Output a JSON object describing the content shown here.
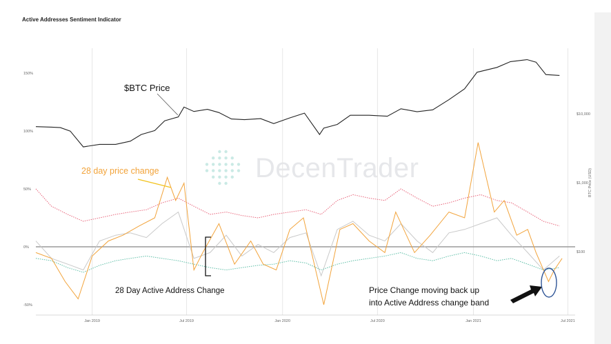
{
  "chart_data": {
    "type": "line",
    "title": "Active Addresses Sentiment Indicator",
    "x_range": [
      "2018-09-15",
      "2021-07-15"
    ],
    "x_ticks": [
      "Jan 2019",
      "Jul 2019",
      "Jan 2020",
      "Jul 2020",
      "Jan 2021",
      "Jul 2021"
    ],
    "left_ticks": [
      "150%",
      "100%",
      "50%",
      "0%",
      "-50%"
    ],
    "right_ticks": [
      "$10,000",
      "$1,000",
      "$100"
    ],
    "ylabel_right": "BTC Price (USD)",
    "grid": true,
    "series": [
      {
        "key": "btc_price",
        "color": "#222222",
        "x": [
          "2018-09-15",
          "2018-10-15",
          "2018-11-01",
          "2018-11-20",
          "2018-12-15",
          "2019-01-15",
          "2019-02-15",
          "2019-03-15",
          "2019-04-05",
          "2019-05-01",
          "2019-05-20",
          "2019-06-15",
          "2019-06-26",
          "2019-07-15",
          "2019-08-10",
          "2019-09-01",
          "2019-09-25",
          "2019-10-20",
          "2019-11-20",
          "2019-12-15",
          "2020-01-15",
          "2020-02-12",
          "2020-03-12",
          "2020-03-20",
          "2020-04-15",
          "2020-05-10",
          "2020-06-15",
          "2020-07-20",
          "2020-08-15",
          "2020-09-15",
          "2020-10-15",
          "2020-11-15",
          "2020-12-15",
          "2021-01-08",
          "2021-02-15",
          "2021-03-13",
          "2021-04-14",
          "2021-05-01",
          "2021-05-20",
          "2021-06-15"
        ],
        "values": [
          6500,
          6400,
          6300,
          5600,
          3300,
          3600,
          3600,
          4000,
          5000,
          5700,
          7900,
          9000,
          12500,
          10800,
          11600,
          10400,
          8400,
          8200,
          8500,
          7200,
          8700,
          10200,
          5000,
          6200,
          7000,
          9500,
          9500,
          9200,
          11800,
          10700,
          11400,
          16000,
          23000,
          40000,
          47000,
          57000,
          61000,
          56000,
          37000,
          36000
        ]
      },
      {
        "key": "price_change_28d",
        "color": "#f2a33a",
        "x": [
          "2018-09-15",
          "2018-10-15",
          "2018-11-10",
          "2018-12-05",
          "2019-01-01",
          "2019-02-01",
          "2019-03-01",
          "2019-04-01",
          "2019-05-01",
          "2019-05-25",
          "2019-06-10",
          "2019-06-26",
          "2019-07-15",
          "2019-08-01",
          "2019-09-01",
          "2019-10-01",
          "2019-11-01",
          "2019-11-25",
          "2019-12-20",
          "2020-01-15",
          "2020-02-10",
          "2020-03-20",
          "2020-04-20",
          "2020-05-15",
          "2020-06-15",
          "2020-07-15",
          "2020-08-05",
          "2020-09-10",
          "2020-10-10",
          "2020-11-15",
          "2020-12-15",
          "2021-01-10",
          "2021-02-10",
          "2021-03-01",
          "2021-03-25",
          "2021-04-15",
          "2021-05-01",
          "2021-05-25",
          "2021-06-05",
          "2021-06-20"
        ],
        "values": [
          -5,
          -10,
          -30,
          -45,
          -8,
          5,
          10,
          18,
          25,
          60,
          40,
          55,
          -20,
          -5,
          20,
          -15,
          5,
          -15,
          -20,
          15,
          25,
          -50,
          15,
          20,
          5,
          -5,
          30,
          -5,
          10,
          30,
          25,
          90,
          30,
          40,
          10,
          15,
          -5,
          -30,
          -20,
          -10
        ]
      },
      {
        "key": "active_address_upper",
        "color": "#e8647a",
        "x": [
          "2018-09-15",
          "2018-10-15",
          "2018-11-15",
          "2018-12-15",
          "2019-01-15",
          "2019-02-15",
          "2019-03-15",
          "2019-04-15",
          "2019-05-15",
          "2019-06-15",
          "2019-07-15",
          "2019-08-15",
          "2019-09-15",
          "2019-10-15",
          "2019-11-15",
          "2019-12-15",
          "2020-01-15",
          "2020-02-15",
          "2020-03-15",
          "2020-04-15",
          "2020-05-15",
          "2020-06-15",
          "2020-07-15",
          "2020-08-15",
          "2020-09-15",
          "2020-10-15",
          "2020-11-15",
          "2020-12-15",
          "2021-01-15",
          "2021-02-15",
          "2021-03-15",
          "2021-04-15",
          "2021-05-15",
          "2021-06-15"
        ],
        "values": [
          50,
          35,
          28,
          22,
          25,
          28,
          30,
          32,
          38,
          42,
          35,
          28,
          30,
          27,
          25,
          28,
          30,
          32,
          28,
          40,
          45,
          42,
          40,
          50,
          42,
          35,
          38,
          42,
          45,
          40,
          38,
          30,
          22,
          18
        ]
      },
      {
        "key": "active_address_lower",
        "color": "#5fbfa8",
        "x": [
          "2018-09-15",
          "2018-10-15",
          "2018-11-15",
          "2018-12-15",
          "2019-01-15",
          "2019-02-15",
          "2019-03-15",
          "2019-04-15",
          "2019-05-15",
          "2019-06-15",
          "2019-07-15",
          "2019-08-15",
          "2019-09-15",
          "2019-10-15",
          "2019-11-15",
          "2019-12-15",
          "2020-01-15",
          "2020-02-15",
          "2020-03-15",
          "2020-04-15",
          "2020-05-15",
          "2020-06-15",
          "2020-07-15",
          "2020-08-15",
          "2020-09-15",
          "2020-10-15",
          "2020-11-15",
          "2020-12-15",
          "2021-01-15",
          "2021-02-15",
          "2021-03-15",
          "2021-04-15",
          "2021-05-15",
          "2021-06-15"
        ],
        "values": [
          -10,
          -12,
          -18,
          -22,
          -16,
          -12,
          -10,
          -8,
          -10,
          -12,
          -15,
          -18,
          -20,
          -18,
          -16,
          -15,
          -12,
          -14,
          -20,
          -15,
          -12,
          -10,
          -8,
          -5,
          -10,
          -12,
          -8,
          -5,
          -8,
          -12,
          -10,
          -15,
          -20,
          -18
        ]
      },
      {
        "key": "address_change_28d",
        "color": "#c9c9c9",
        "x": [
          "2018-09-15",
          "2018-10-15",
          "2018-11-15",
          "2018-12-15",
          "2019-01-15",
          "2019-02-15",
          "2019-03-15",
          "2019-04-15",
          "2019-05-15",
          "2019-06-15",
          "2019-07-15",
          "2019-08-15",
          "2019-09-15",
          "2019-10-15",
          "2019-11-15",
          "2019-12-15",
          "2020-01-15",
          "2020-02-15",
          "2020-03-15",
          "2020-04-15",
          "2020-05-15",
          "2020-06-15",
          "2020-07-15",
          "2020-08-15",
          "2020-09-15",
          "2020-10-15",
          "2020-11-15",
          "2020-12-15",
          "2021-01-15",
          "2021-02-15",
          "2021-03-15",
          "2021-04-15",
          "2021-05-15",
          "2021-06-15"
        ],
        "values": [
          5,
          -10,
          -15,
          -20,
          5,
          10,
          12,
          8,
          20,
          30,
          -10,
          -5,
          10,
          -8,
          2,
          -5,
          8,
          12,
          -25,
          15,
          22,
          10,
          5,
          20,
          5,
          -5,
          12,
          15,
          20,
          25,
          10,
          -5,
          -20,
          -8
        ]
      }
    ],
    "annotations": [
      {
        "key": "btc_label",
        "text": "$BTC Price"
      },
      {
        "key": "price_change_label",
        "text": "28 day price change",
        "color": "#f2a33a"
      },
      {
        "key": "address_label",
        "text": "28 Day Active Address Change"
      },
      {
        "key": "callout_line1",
        "text": "Price Change moving back up"
      },
      {
        "key": "callout_line2",
        "text": "into Active Address change band"
      }
    ]
  },
  "watermark": {
    "part1": "Decen",
    "part2": "Trader",
    "color": "#c9ccd1"
  }
}
